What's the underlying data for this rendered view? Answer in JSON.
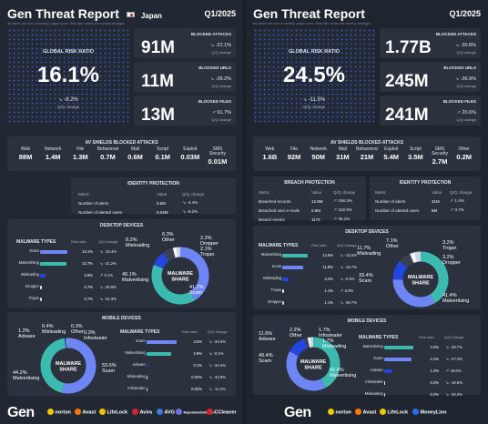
{
  "japan": {
    "title": "Gen Threat Report",
    "country": "Japan",
    "period": "Q1/2025",
    "subtitle": "All values are sum of monthly unique users. Risk ratio values are monthly averages.",
    "risk": {
      "title": "GLOBAL RISK RATIO",
      "value": "16.1%",
      "change": "-8.2%",
      "label": "Q/Q change"
    },
    "blocked": [
      {
        "title": "BLOCKED ATTACKS",
        "value": "91M",
        "change": "-22.1%",
        "label": "Q/Q change"
      },
      {
        "title": "BLOCKED URLS",
        "value": "11M",
        "change": "-28.2%",
        "label": "Q/Q change"
      },
      {
        "title": "BLOCKED FILES",
        "value": "13M",
        "change": "91.7%",
        "label": "Q/Q change"
      }
    ],
    "shields_title": "AV SHIELDS BLOCKED ATTACKS",
    "shields": [
      {
        "name": "Web",
        "value": "88M"
      },
      {
        "name": "Network",
        "value": "1.4M"
      },
      {
        "name": "File",
        "value": "1.3M"
      },
      {
        "name": "Behavioral",
        "value": "0.7M"
      },
      {
        "name": "Mail",
        "value": "0.6M"
      },
      {
        "name": "Script",
        "value": "0.1M"
      },
      {
        "name": "Exploit",
        "value": "0.03M"
      },
      {
        "name": "SMS Security",
        "value": "0.01M"
      }
    ],
    "identity": {
      "title": "IDENTITY PROTECTION",
      "cols": [
        "Metric",
        "Value",
        "Q/Q change"
      ],
      "rows": [
        {
          "metric": "Number of alerts",
          "value": "0.5M",
          "change": "-4.4%"
        },
        {
          "metric": "Number of alerted users",
          "value": "0.04M",
          "change": "-9.2%"
        }
      ]
    },
    "desktop": {
      "title": "DESKTOP DEVICES",
      "types_title": "MALWARE TYPES",
      "cols": [
        "Risk ratio",
        "Q/Q change"
      ],
      "rows": [
        {
          "name": "Scam",
          "ratio": "13.1%",
          "change": "-15.4%",
          "bar": 13.1,
          "color": "#6d85f5"
        },
        {
          "name": "Malvertising",
          "ratio": "12.7%",
          "change": "-21.2%",
          "bar": 12.7,
          "color": "#3dbab0"
        },
        {
          "name": "Misleading",
          "ratio": "2.6%",
          "change": "0.1%",
          "bar": 2.6,
          "color": "#2345e0"
        },
        {
          "name": "Dropper",
          "ratio": "0.7%",
          "change": "-25.9%",
          "bar": 0.7,
          "color": "#e8ecf3"
        },
        {
          "name": "Trojan",
          "ratio": "0.7%",
          "change": "-31.3%",
          "bar": 0.7,
          "color": "#cfd4de"
        }
      ],
      "donut_label": "MALWARE SHARE",
      "share": [
        {
          "name": "Scam",
          "value": 41.7,
          "label": "41.7%",
          "color": "#6d85f5"
        },
        {
          "name": "Malvertising",
          "value": 40.1,
          "label": "40.1%",
          "color": "#3dbab0"
        },
        {
          "name": "Misleading",
          "value": 8.2,
          "label": "8.2%",
          "color": "#2345e0"
        },
        {
          "name": "Other",
          "value": 6.3,
          "label": "6.3%",
          "color": "#3a4150"
        },
        {
          "name": "Dropper",
          "value": 2.2,
          "label": "2.2%",
          "color": "#f2f4f8"
        },
        {
          "name": "Trojan",
          "value": 2.1,
          "label": "2.1%",
          "color": "#cfd4de"
        }
      ]
    },
    "mobile": {
      "title": "MOBILE DEVICES",
      "types_title": "MALWARE TYPES",
      "cols": [
        "Risk ratio",
        "Q/Q change"
      ],
      "rows": [
        {
          "name": "Scam",
          "ratio": "3.5%",
          "change": "-34.6%",
          "bar": 3.5,
          "color": "#6d85f5"
        },
        {
          "name": "Malvertising",
          "ratio": "2.9%",
          "change": "-0.1%",
          "bar": 2.9,
          "color": "#3dbab0"
        },
        {
          "name": "Adware",
          "ratio": "0.1%",
          "change": "-34.4%",
          "bar": 0.1,
          "color": "#2345e0"
        },
        {
          "name": "Misleading",
          "ratio": "0.02%",
          "change": "-42.8%",
          "bar": 0.02,
          "color": "#e8ecf3"
        },
        {
          "name": "Infostealer",
          "ratio": "0.02%",
          "change": "-11.2%",
          "bar": 0.02,
          "color": "#cfd4de"
        }
      ],
      "donut_label": "MALWARE SHARE",
      "share": [
        {
          "name": "Scam",
          "value": 53.6,
          "label": "53.6%",
          "color": "#6d85f5"
        },
        {
          "name": "Malvertising",
          "value": 44.2,
          "label": "44.2%",
          "color": "#3dbab0"
        },
        {
          "name": "Adware",
          "value": 1.2,
          "label": "1.2%",
          "color": "#2345e0"
        },
        {
          "name": "Misleading",
          "value": 0.4,
          "label": "0.4%",
          "color": "#f2f4f8"
        },
        {
          "name": "Other",
          "value": 0.3,
          "label": "0.3%",
          "color": "#3a4150"
        },
        {
          "name": "Infostealer",
          "value": 0.3,
          "label": "0.3%",
          "color": "#cfd4de"
        }
      ]
    }
  },
  "global": {
    "title": "Gen Threat Report",
    "period": "Q1/2025",
    "subtitle": "All values are sum of monthly unique users. Risk ratio values are monthly averages.",
    "risk": {
      "title": "GLOBAL RISK RATIO",
      "value": "24.5%",
      "change": "-11.5%",
      "label": "Q/Q change"
    },
    "blocked": [
      {
        "title": "BLOCKED ATTACKS",
        "value": "1.77B",
        "change": "-30.8%",
        "label": "Q/Q change"
      },
      {
        "title": "BLOCKED URLS",
        "value": "245M",
        "change": "-36.9%",
        "label": "Q/Q change"
      },
      {
        "title": "BLOCKED FILES",
        "value": "241M",
        "change": "20.6%",
        "label": "Q/Q change"
      }
    ],
    "shields_title": "AV SHIELDS BLOCKED ATTACKS",
    "shields": [
      {
        "name": "Web",
        "value": "1.6B"
      },
      {
        "name": "File",
        "value": "92M"
      },
      {
        "name": "Network",
        "value": "50M"
      },
      {
        "name": "Mail",
        "value": "31M"
      },
      {
        "name": "Behavioral",
        "value": "21M"
      },
      {
        "name": "Exploit",
        "value": "5.4M"
      },
      {
        "name": "Script",
        "value": "3.5M"
      },
      {
        "name": "SMS Security",
        "value": "2.7M"
      },
      {
        "name": "Other",
        "value": "0.2M"
      }
    ],
    "breach": {
      "title": "BREACH PROTECTION",
      "cols": [
        "Metric",
        "Value",
        "Q/Q change"
      ],
      "rows": [
        {
          "metric": "Breached records",
          "value": "12.9M",
          "change": "186.3%"
        },
        {
          "metric": "Breached user e-mails",
          "value": "0.5M",
          "change": "102.9%"
        },
        {
          "metric": "Breach events",
          "value": "1172",
          "change": "36.1%"
        }
      ]
    },
    "identity": {
      "title": "IDENTITY PROTECTION",
      "cols": [
        "Metric",
        "Value",
        "Q/Q change"
      ],
      "rows": [
        {
          "metric": "Number of alerts",
          "value": "31M",
          "change": "1.4%"
        },
        {
          "metric": "Number of alerted users",
          "value": "5M",
          "change": "3.7%"
        }
      ]
    },
    "desktop": {
      "title": "DESKTOP DEVICES",
      "types_title": "MALWARE TYPES",
      "cols": [
        "Risk ratio",
        "Q/Q change"
      ],
      "rows": [
        {
          "name": "Malvertising",
          "ratio": "14.6%",
          "change": "-15.5%",
          "bar": 14.6,
          "color": "#3dbab0"
        },
        {
          "name": "Scam",
          "ratio": "11.8%",
          "change": "-16.7%",
          "bar": 11.8,
          "color": "#6d85f5"
        },
        {
          "name": "Misleading",
          "ratio": "3.4%",
          "change": "-0.9%",
          "bar": 3.4,
          "color": "#2345e0"
        },
        {
          "name": "Trojan",
          "ratio": "1.1%",
          "change": "5.0%",
          "bar": 1.1,
          "color": "#e8ecf3"
        },
        {
          "name": "Dropper",
          "ratio": "1.1%",
          "change": "-36.7%",
          "bar": 1.1,
          "color": "#cfd4de"
        }
      ],
      "donut_label": "MALWARE SHARE",
      "share": [
        {
          "name": "Malvertising",
          "value": 41.4,
          "label": "41.4%",
          "color": "#3dbab0"
        },
        {
          "name": "Scam",
          "value": 33.4,
          "label": "33.4%",
          "color": "#6d85f5"
        },
        {
          "name": "Misleading",
          "value": 11.7,
          "label": "11.7%",
          "color": "#2345e0"
        },
        {
          "name": "Other",
          "value": 7.1,
          "label": "7.1%",
          "color": "#3a4150"
        },
        {
          "name": "Trojan",
          "value": 3.2,
          "label": "3.2%",
          "color": "#f2f4f8"
        },
        {
          "name": "Dropper",
          "value": 3.2,
          "label": "3.2%",
          "color": "#cfd4de"
        }
      ]
    },
    "mobile": {
      "title": "MOBILE DEVICES",
      "types_title": "MALWARE TYPES",
      "cols": [
        "Risk ratio",
        "Q/Q change"
      ],
      "rows": [
        {
          "name": "Malvertising",
          "ratio": "4.3%",
          "change": "-38.7%",
          "bar": 4.3,
          "color": "#3dbab0"
        },
        {
          "name": "Scam",
          "ratio": "4.1%",
          "change": "-27.4%",
          "bar": 4.1,
          "color": "#6d85f5"
        },
        {
          "name": "Adware",
          "ratio": "1.2%",
          "change": "18.6%",
          "bar": 1.2,
          "color": "#2345e0"
        },
        {
          "name": "Infostealer",
          "ratio": "0.2%",
          "change": "-16.6%",
          "bar": 0.2,
          "color": "#e8ecf3"
        },
        {
          "name": "Misleading",
          "ratio": "0.2%",
          "change": "-26.3%",
          "bar": 0.2,
          "color": "#cfd4de"
        }
      ],
      "donut_label": "MALWARE SHARE",
      "share": [
        {
          "name": "Malvertising",
          "value": 42.4,
          "label": "42.4%",
          "color": "#3dbab0"
        },
        {
          "name": "Scam",
          "value": 40.4,
          "label": "40.4%",
          "color": "#6d85f5"
        },
        {
          "name": "Adware",
          "value": 11.6,
          "label": "11.6%",
          "color": "#2345e0"
        },
        {
          "name": "Other",
          "value": 2.2,
          "label": "2.2%",
          "color": "#3a4150"
        },
        {
          "name": "Infostealer",
          "value": 1.7,
          "label": "1.7%",
          "color": "#f2f4f8"
        },
        {
          "name": "Misleading",
          "value": 1.7,
          "label": "1.7%",
          "color": "#cfd4de"
        }
      ]
    }
  },
  "footer": {
    "gen": "Gen",
    "brands_left": [
      "norton",
      "Avast",
      "LifeLock",
      "Avira",
      "AVG",
      "ReputationDefender",
      "CCleaner"
    ],
    "brands_right": [
      "norton",
      "Avast",
      "LifeLock",
      "MoneyLion"
    ],
    "brand_colors": {
      "norton": "#f2c500",
      "Avast": "#ff7800",
      "LifeLock": "#f2c500",
      "Avira": "#d8242c",
      "AVG": "#3e7ad8",
      "ReputationDefender": "#6b74e0",
      "CCleaner": "#d8232a",
      "MoneyLion": "#2d68ff"
    }
  }
}
